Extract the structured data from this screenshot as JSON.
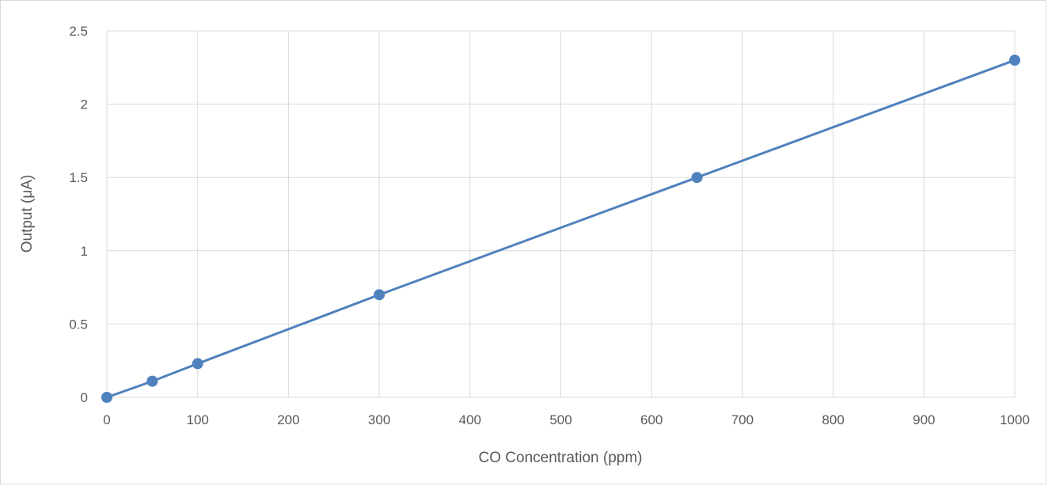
{
  "chart_data": {
    "type": "scatter",
    "title": "",
    "xlabel": "CO Concentration (ppm)",
    "ylabel": "Output (μA)",
    "xlim": [
      0,
      1000
    ],
    "ylim": [
      0,
      2.5
    ],
    "x_ticks": [
      "0",
      "100",
      "200",
      "300",
      "400",
      "500",
      "600",
      "700",
      "800",
      "900",
      "1000"
    ],
    "y_ticks": [
      "0",
      "0.5",
      "1",
      "1.5",
      "2",
      "2.5"
    ],
    "grid": true,
    "legend": "none",
    "series": [
      {
        "color": "#4f81bd",
        "x": [
          0,
          50,
          100,
          300,
          650,
          1000
        ],
        "y": [
          0,
          0.11,
          0.23,
          0.7,
          1.5,
          2.3
        ]
      }
    ]
  }
}
